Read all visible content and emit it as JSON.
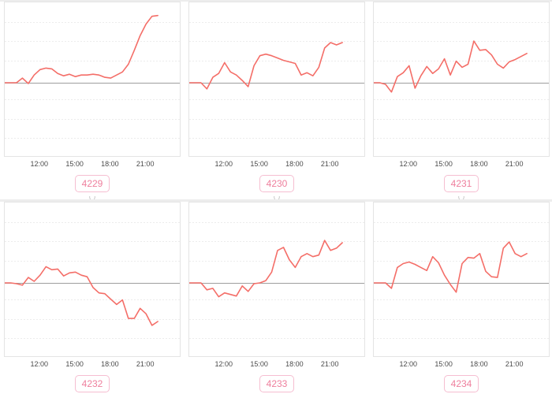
{
  "colors": {
    "series_line": "#f46e68",
    "zero_line": "#9e9e9e",
    "gridline": "#ececec",
    "plot_border": "#e4e4e4",
    "badge_border": "#f6bed1",
    "badge_text": "#ee7f9d",
    "tick_text": "#4a4a4a",
    "divider": "#ededed"
  },
  "misc": {
    "clipped_title_fragment": "( )"
  },
  "chart_data": {
    "type": "line",
    "grid": "on",
    "x_domain_hours": [
      9,
      24
    ],
    "y_domain": [
      -0.97,
      1.0
    ],
    "baseline": 0,
    "x_hours": [
      9,
      9.5,
      10,
      10.5,
      11,
      11.5,
      12,
      12.5,
      13,
      13.5,
      14,
      14.5,
      15,
      15.5,
      16,
      16.5,
      17,
      17.5,
      18,
      18.5,
      19,
      19.5,
      20,
      20.5,
      21,
      21.5,
      22
    ],
    "xticks": [
      "12:00",
      "15:00",
      "18:00",
      "21:00"
    ],
    "xtick_hours": [
      12,
      15,
      18,
      21
    ],
    "charts": [
      {
        "label": "4229",
        "values": [
          0,
          0,
          0,
          0.06,
          -0.01,
          0.1,
          0.17,
          0.19,
          0.18,
          0.12,
          0.09,
          0.11,
          0.08,
          0.1,
          0.1,
          0.11,
          0.1,
          0.07,
          0.06,
          0.1,
          0.14,
          0.24,
          0.42,
          0.61,
          0.76,
          0.86,
          0.87
        ]
      },
      {
        "label": "4230",
        "values": [
          0,
          0,
          0,
          -0.08,
          0.07,
          0.12,
          0.26,
          0.14,
          0.1,
          0.03,
          -0.05,
          0.22,
          0.35,
          0.37,
          0.35,
          0.32,
          0.29,
          0.27,
          0.25,
          0.1,
          0.13,
          0.09,
          0.2,
          0.45,
          0.52,
          0.49,
          0.52
        ]
      },
      {
        "label": "4231",
        "values": [
          0,
          0,
          -0.02,
          -0.12,
          0.08,
          0.13,
          0.22,
          -0.07,
          0.09,
          0.21,
          0.12,
          0.18,
          0.31,
          0.1,
          0.28,
          0.2,
          0.24,
          0.54,
          0.42,
          0.43,
          0.36,
          0.24,
          0.19,
          0.27,
          0.3,
          0.34,
          0.38
        ]
      },
      {
        "label": "4232",
        "values": [
          0,
          0,
          -0.01,
          -0.03,
          0.07,
          0.02,
          0.1,
          0.21,
          0.17,
          0.18,
          0.09,
          0.13,
          0.14,
          0.1,
          0.08,
          -0.06,
          -0.13,
          -0.14,
          -0.21,
          -0.28,
          -0.22,
          -0.46,
          -0.46,
          -0.33,
          -0.4,
          -0.55,
          -0.5
        ]
      },
      {
        "label": "4233",
        "values": [
          0,
          0,
          0,
          -0.09,
          -0.07,
          -0.18,
          -0.13,
          -0.15,
          -0.17,
          -0.04,
          -0.11,
          -0.01,
          0,
          0.03,
          0.14,
          0.42,
          0.46,
          0.3,
          0.2,
          0.34,
          0.38,
          0.34,
          0.36,
          0.55,
          0.42,
          0.45,
          0.52
        ]
      },
      {
        "label": "4234",
        "values": [
          0,
          0,
          0,
          -0.07,
          0.2,
          0.25,
          0.27,
          0.24,
          0.2,
          0.16,
          0.34,
          0.26,
          0.1,
          -0.02,
          -0.12,
          0.25,
          0.33,
          0.32,
          0.38,
          0.15,
          0.08,
          0.07,
          0.45,
          0.53,
          0.38,
          0.34,
          0.38
        ]
      }
    ]
  }
}
